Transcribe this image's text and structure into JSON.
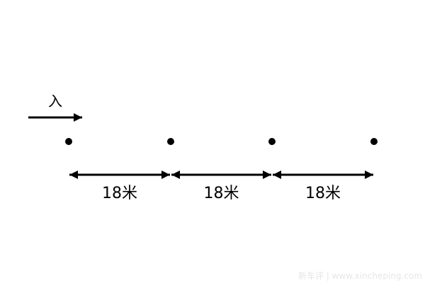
{
  "entry": {
    "label": "入"
  },
  "points": 4,
  "spans": [
    {
      "label": "18米"
    },
    {
      "label": "18米"
    },
    {
      "label": "18米"
    }
  ],
  "watermark": "新车评 | www.xincheping.com",
  "colors": {
    "ink": "#000000",
    "watermark": "#e6e6e6"
  }
}
